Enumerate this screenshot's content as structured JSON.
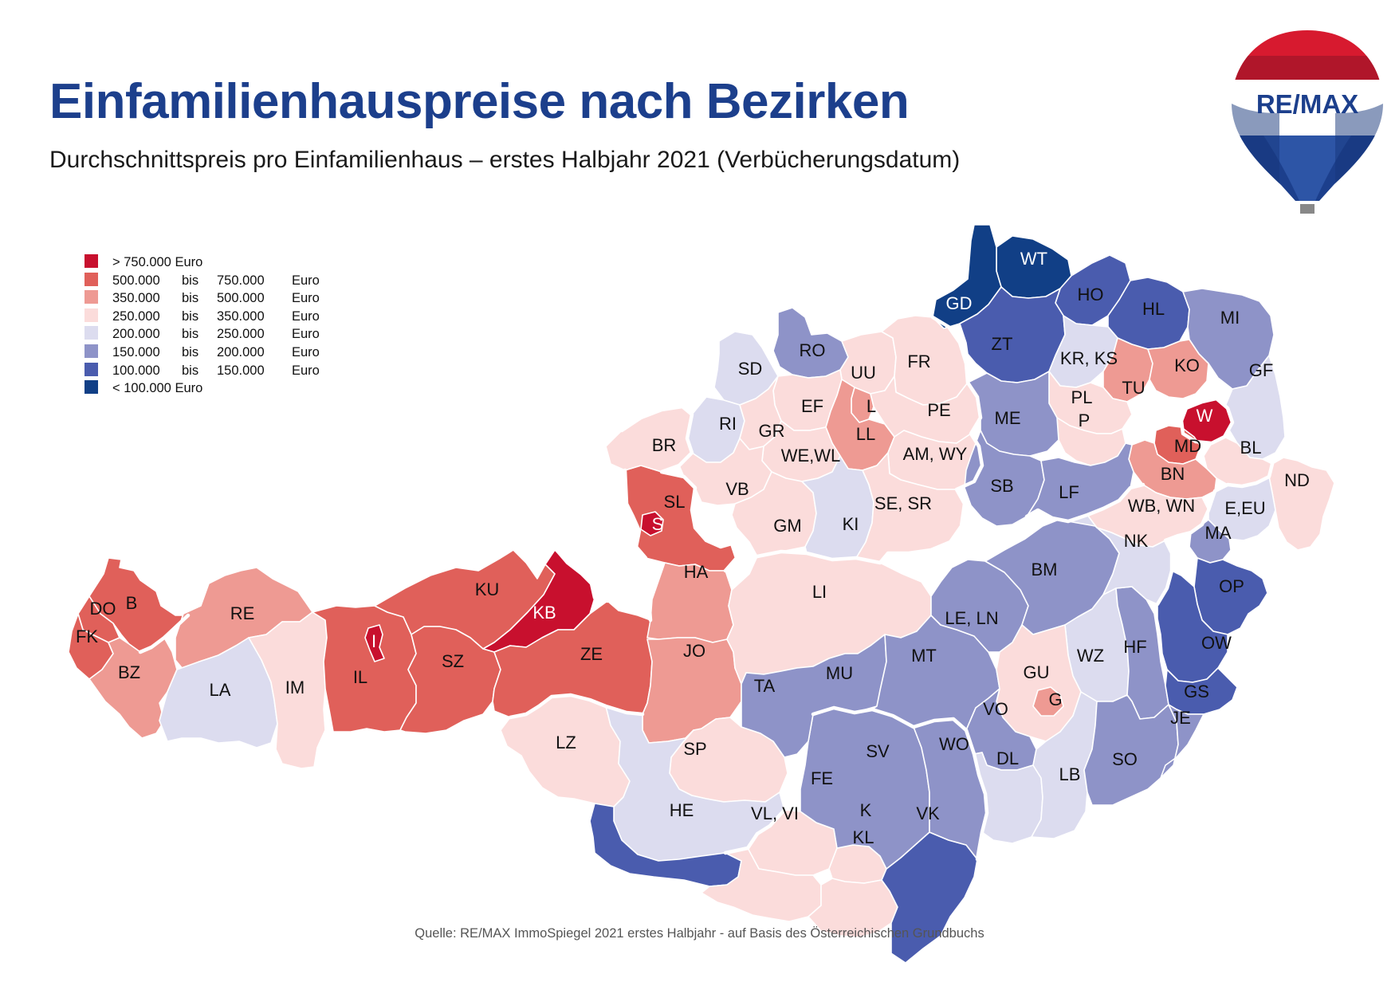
{
  "header": {
    "title": "Einfamilienhauspreise nach Bezirken",
    "subtitle": "Durchschnittspreis pro Einfamilienhaus – erstes Halbjahr 2021 (Verbücherungsdatum)"
  },
  "brand": {
    "logo_text": "RE/MAX",
    "icon": "hot-air-balloon-logo"
  },
  "legend": [
    {
      "cls": 0,
      "label": "> 750.000 Euro"
    },
    {
      "cls": 1,
      "from": "500.000",
      "sep": "bis",
      "to": "750.000",
      "unit": "Euro"
    },
    {
      "cls": 2,
      "from": "350.000",
      "sep": "bis",
      "to": "500.000",
      "unit": "Euro"
    },
    {
      "cls": 3,
      "from": "250.000",
      "sep": "bis",
      "to": "350.000",
      "unit": "Euro"
    },
    {
      "cls": 4,
      "from": "200.000",
      "sep": "bis",
      "to": "250.000",
      "unit": "Euro"
    },
    {
      "cls": 5,
      "from": "150.000",
      "sep": "bis",
      "to": "200.000",
      "unit": "Euro"
    },
    {
      "cls": 6,
      "from": "100.000",
      "sep": "bis",
      "to": "150.000",
      "unit": "Euro"
    },
    {
      "cls": 7,
      "label": "< 100.000 Euro"
    }
  ],
  "colors": [
    "#c8102e",
    "#e0605a",
    "#ee9a93",
    "#fbdcdb",
    "#dcdcef",
    "#8e93c8",
    "#4a5cae",
    "#113f86"
  ],
  "label_colors": {
    "dark": "#ffffff",
    "light": "#111111"
  },
  "districts": [
    {
      "code": "WT",
      "cls": 7
    },
    {
      "code": "GD",
      "cls": 7
    },
    {
      "code": "HO",
      "cls": 6
    },
    {
      "code": "HL",
      "cls": 6
    },
    {
      "code": "MI",
      "cls": 5
    },
    {
      "code": "ZT",
      "cls": 6
    },
    {
      "code": "KR, KS",
      "cls": 4
    },
    {
      "code": "RO",
      "cls": 5
    },
    {
      "code": "UU",
      "cls": 3
    },
    {
      "code": "FR",
      "cls": 3
    },
    {
      "code": "SD",
      "cls": 4
    },
    {
      "code": "TU",
      "cls": 2
    },
    {
      "code": "KO",
      "cls": 2
    },
    {
      "code": "GF",
      "cls": 4
    },
    {
      "code": "PL",
      "cls": 3
    },
    {
      "code": "P",
      "cls": 3
    },
    {
      "code": "W",
      "cls": 0
    },
    {
      "code": "ME",
      "cls": 5
    },
    {
      "code": "EF",
      "cls": 3
    },
    {
      "code": "L",
      "cls": 2
    },
    {
      "code": "PE",
      "cls": 3
    },
    {
      "code": "RI",
      "cls": 4
    },
    {
      "code": "GR",
      "cls": 3
    },
    {
      "code": "LL",
      "cls": 2
    },
    {
      "code": "MD",
      "cls": 1
    },
    {
      "code": "BL",
      "cls": 3
    },
    {
      "code": "BR",
      "cls": 3
    },
    {
      "code": "WE,WL",
      "cls": 3
    },
    {
      "code": "AM, WY",
      "cls": 3
    },
    {
      "code": "BN",
      "cls": 2
    },
    {
      "code": "ND",
      "cls": 3
    },
    {
      "code": "SB",
      "cls": 5
    },
    {
      "code": "VB",
      "cls": 3
    },
    {
      "code": "SL",
      "cls": 1
    },
    {
      "code": "LF",
      "cls": 5
    },
    {
      "code": "WB, WN",
      "cls": 3
    },
    {
      "code": "E,EU",
      "cls": 4
    },
    {
      "code": "SE, SR",
      "cls": 3
    },
    {
      "code": "S",
      "cls": 0
    },
    {
      "code": "KI",
      "cls": 4
    },
    {
      "code": "GM",
      "cls": 3
    },
    {
      "code": "NK",
      "cls": 4
    },
    {
      "code": "MA",
      "cls": 5
    },
    {
      "code": "HA",
      "cls": 2
    },
    {
      "code": "BM",
      "cls": 5
    },
    {
      "code": "KU",
      "cls": 1
    },
    {
      "code": "KB",
      "cls": 0
    },
    {
      "code": "OP",
      "cls": 6
    },
    {
      "code": "B",
      "cls": 1
    },
    {
      "code": "DO",
      "cls": 1
    },
    {
      "code": "RE",
      "cls": 2
    },
    {
      "code": "LI",
      "cls": 3
    },
    {
      "code": "LE, LN",
      "cls": 5
    },
    {
      "code": "FK",
      "cls": 1
    },
    {
      "code": "I",
      "cls": 0
    },
    {
      "code": "OW",
      "cls": 6
    },
    {
      "code": "HF",
      "cls": 5
    },
    {
      "code": "ZE",
      "cls": 1
    },
    {
      "code": "JO",
      "cls": 2
    },
    {
      "code": "MT",
      "cls": 5
    },
    {
      "code": "WZ",
      "cls": 4
    },
    {
      "code": "GU",
      "cls": 3
    },
    {
      "code": "BZ",
      "cls": 2
    },
    {
      "code": "SZ",
      "cls": 1
    },
    {
      "code": "MU",
      "cls": 5
    },
    {
      "code": "IL",
      "cls": 1
    },
    {
      "code": "LA",
      "cls": 4
    },
    {
      "code": "IM",
      "cls": 3
    },
    {
      "code": "TA",
      "cls": 3
    },
    {
      "code": "G",
      "cls": 2
    },
    {
      "code": "GS",
      "cls": 6
    },
    {
      "code": "VO",
      "cls": 5
    },
    {
      "code": "JE",
      "cls": 5
    },
    {
      "code": "WO",
      "cls": 5
    },
    {
      "code": "LZ",
      "cls": 3
    },
    {
      "code": "SP",
      "cls": 4
    },
    {
      "code": "SV",
      "cls": 5
    },
    {
      "code": "DL",
      "cls": 4
    },
    {
      "code": "SO",
      "cls": 5
    },
    {
      "code": "FE",
      "cls": 3
    },
    {
      "code": "LB",
      "cls": 4
    },
    {
      "code": "HE",
      "cls": 6
    },
    {
      "code": "VL, VI",
      "cls": 3
    },
    {
      "code": "K",
      "cls": 3
    },
    {
      "code": "VK",
      "cls": 6
    },
    {
      "code": "KL",
      "cls": 3
    }
  ],
  "source": "Quelle: RE/MAX ImmoSpiegel 2021 erstes Halbjahr - auf Basis des Österreichischen Grundbuchs"
}
